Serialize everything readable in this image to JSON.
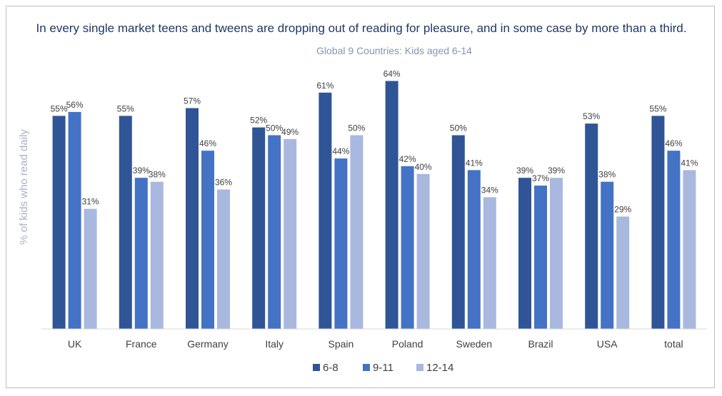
{
  "chart_data": {
    "type": "bar",
    "title": "In every single market teens and tweens are dropping out of reading for pleasure, and in some case by more than a third.",
    "subtitle": "Global 9 Countries: Kids aged 6-14",
    "xlabel": "",
    "ylabel": "% of kids who read daily",
    "ylim": [
      0,
      70
    ],
    "grid": false,
    "legend_position": "bottom",
    "value_suffix": "%",
    "categories": [
      "UK",
      "France",
      "Germany",
      "Italy",
      "Spain",
      "Poland",
      "Sweden",
      "Brazil",
      "USA",
      "total"
    ],
    "series": [
      {
        "name": "6-8",
        "color": "#2f5597",
        "values": [
          55,
          55,
          57,
          52,
          61,
          64,
          50,
          39,
          53,
          55
        ]
      },
      {
        "name": "9-11",
        "color": "#4472c4",
        "values": [
          56,
          39,
          46,
          50,
          44,
          42,
          41,
          37,
          38,
          46
        ]
      },
      {
        "name": "12-14",
        "color": "#a9b8de",
        "values": [
          31,
          38,
          36,
          49,
          50,
          40,
          34,
          39,
          29,
          41
        ]
      }
    ]
  }
}
